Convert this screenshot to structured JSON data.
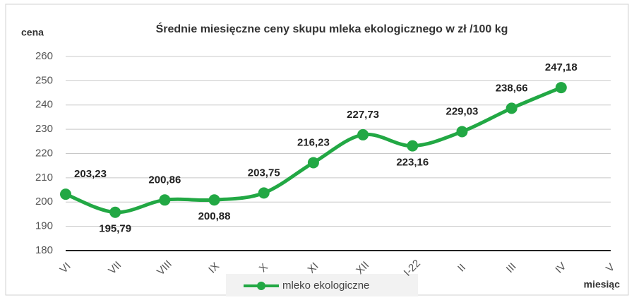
{
  "chart_data": {
    "type": "line",
    "title": "Średnie miesięczne ceny skupu mleka ekologicznego w zł /100 kg",
    "y_label": "cena",
    "x_label": "miesiąc",
    "categories": [
      "VI",
      "VII",
      "VIII",
      "IX",
      "X",
      "XI",
      "XII",
      "I-22",
      "II",
      "III",
      "IV",
      "V"
    ],
    "series": [
      {
        "name": "mleko ekologiczne",
        "color": "#22a844",
        "values": [
          203.23,
          195.79,
          200.86,
          200.88,
          203.75,
          216.23,
          227.73,
          223.16,
          229.03,
          238.66,
          247.18,
          null
        ],
        "value_labels": [
          "203,23",
          "195,79",
          "200,86",
          "200,88",
          "203,75",
          "216,23",
          "227,73",
          "223,16",
          "229,03",
          "238,66",
          "247,18",
          null
        ]
      }
    ],
    "ylim": [
      180,
      260
    ],
    "yticks": [
      180,
      190,
      200,
      210,
      220,
      230,
      240,
      250,
      260
    ],
    "grid": true,
    "legend": "bottom"
  }
}
